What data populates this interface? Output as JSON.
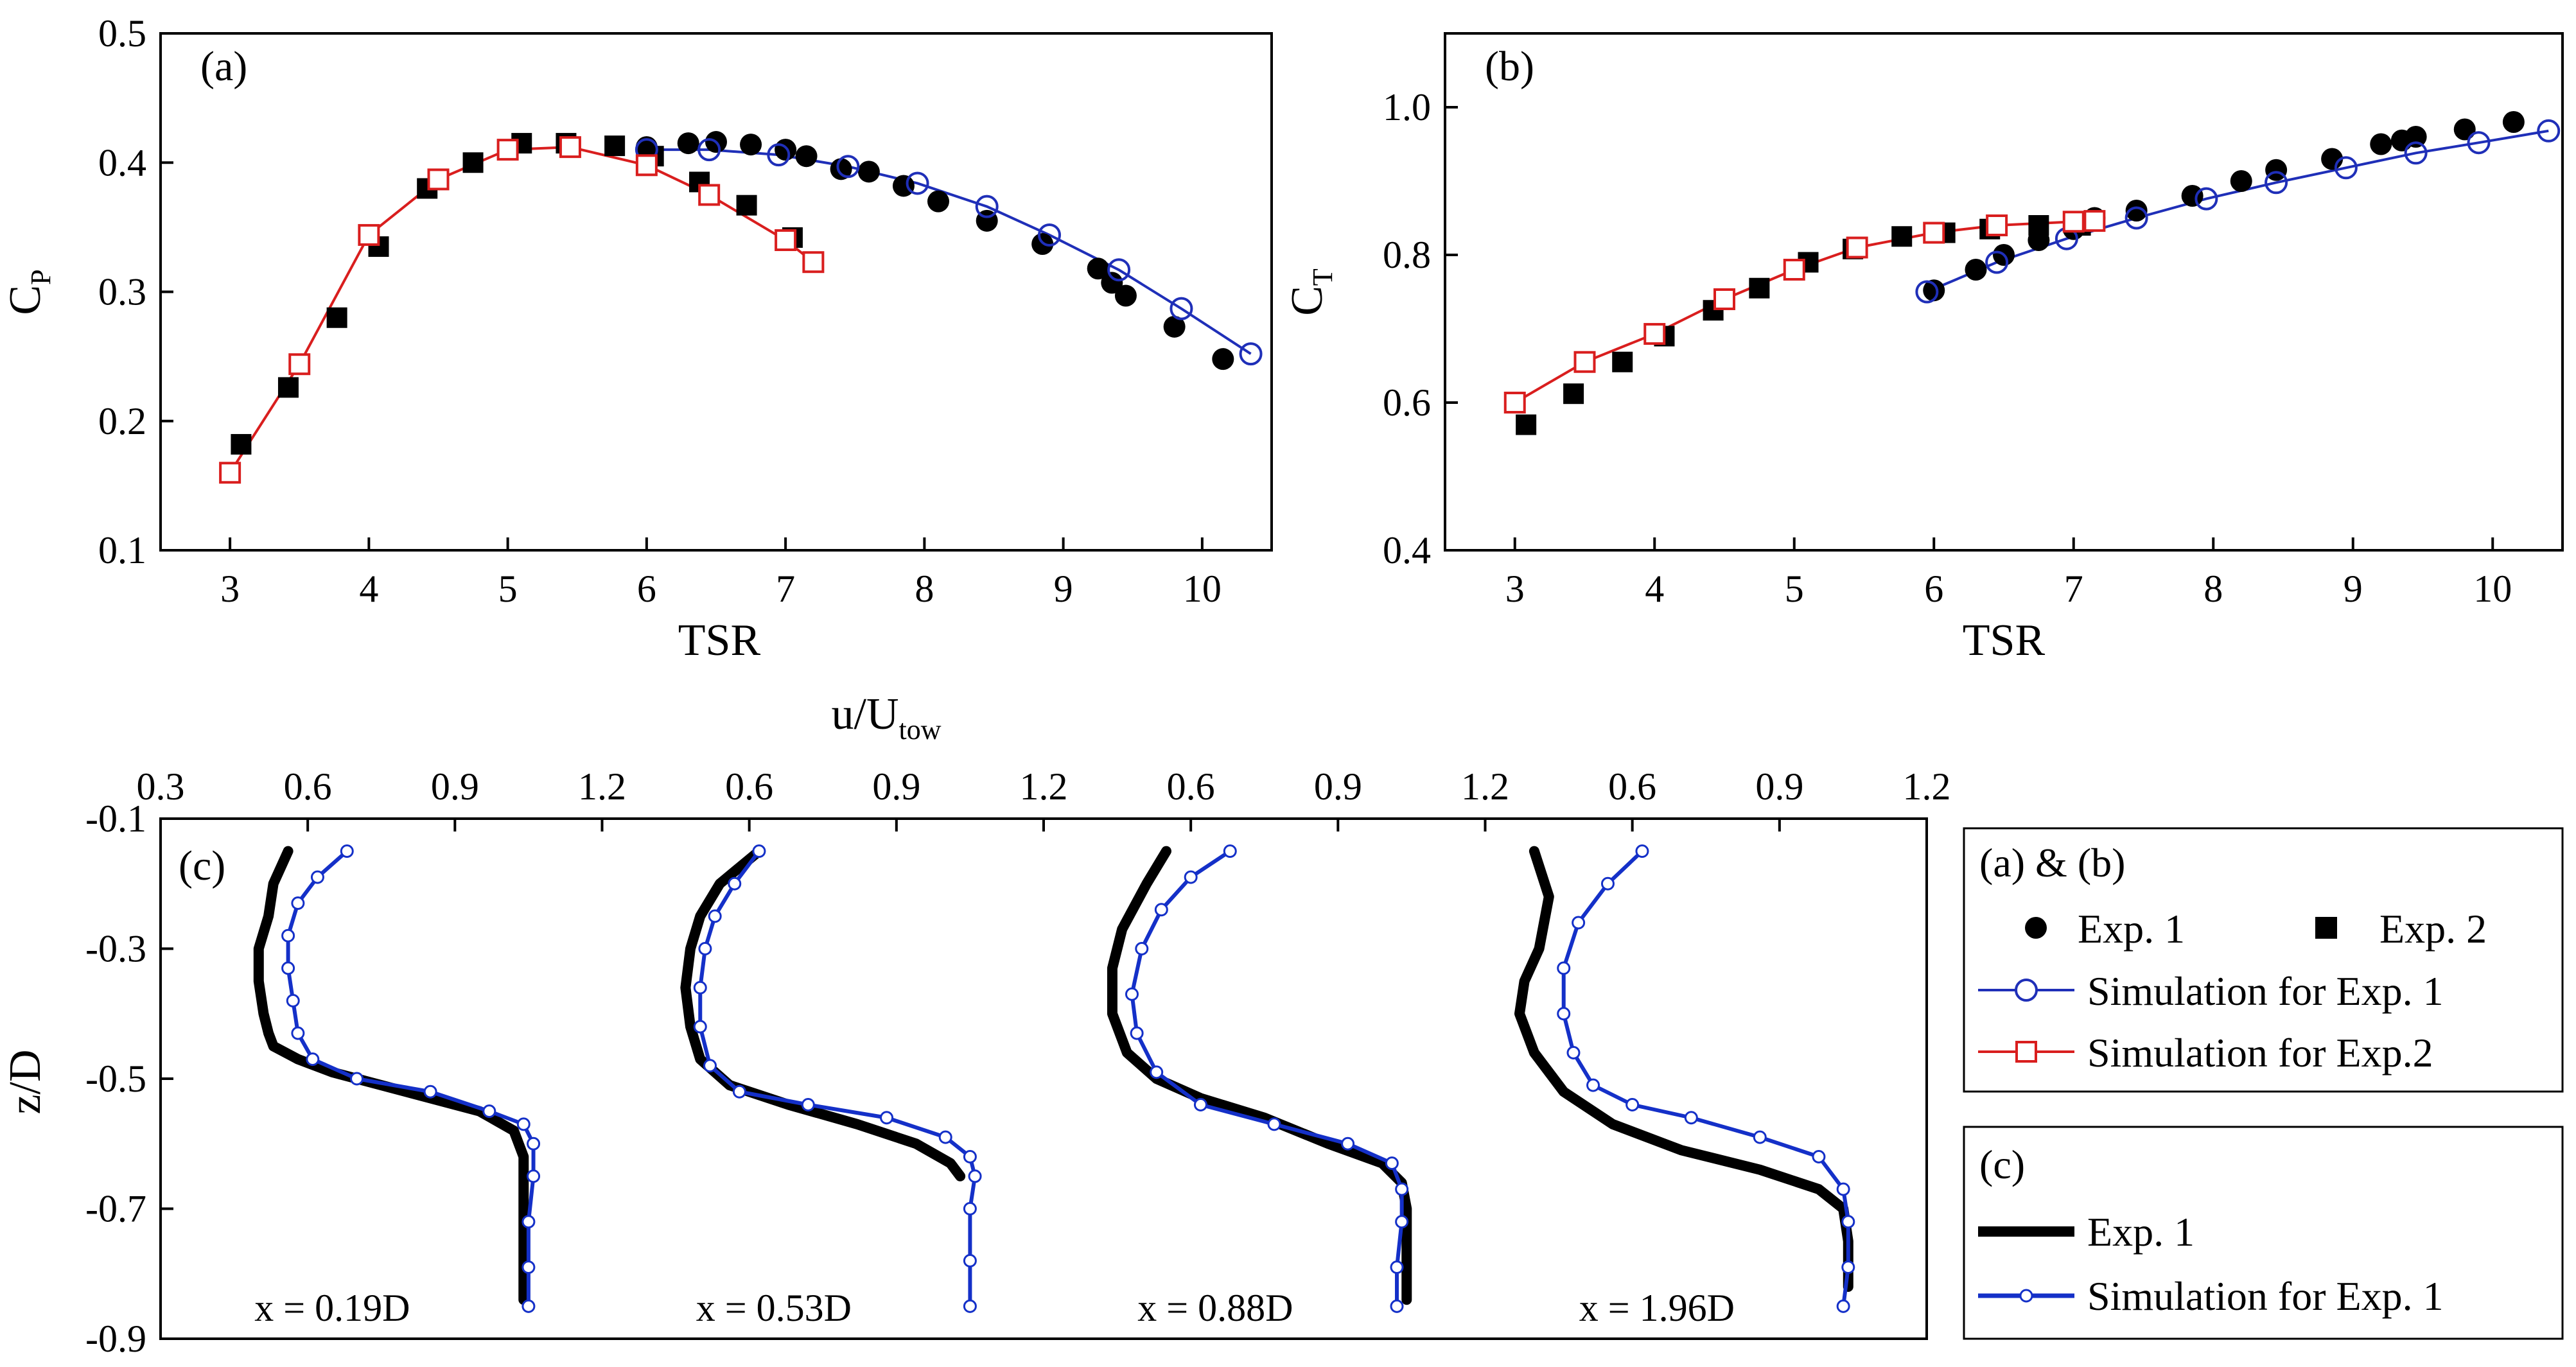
{
  "chart_data": [
    {
      "id": "a",
      "panel_label": "(a)",
      "type": "line",
      "xlabel": "TSR",
      "ylabel": "C",
      "ylabel_sub": "P",
      "xlim": [
        2.5,
        10.5
      ],
      "ylim": [
        0.1,
        0.5
      ],
      "xticks": [
        3,
        4,
        5,
        6,
        7,
        8,
        9,
        10
      ],
      "yticks": [
        0.1,
        0.2,
        0.3,
        0.4,
        0.5
      ],
      "series": [
        {
          "name": "Exp. 1",
          "kind": "filled-circle",
          "x": [
            6.0,
            6.3,
            6.5,
            6.75,
            7.0,
            7.15,
            7.4,
            7.6,
            7.85,
            8.1,
            8.45,
            8.85,
            9.25,
            9.35,
            9.45,
            9.8,
            10.15
          ],
          "y": [
            0.412,
            0.415,
            0.416,
            0.414,
            0.41,
            0.405,
            0.395,
            0.393,
            0.382,
            0.37,
            0.355,
            0.337,
            0.318,
            0.307,
            0.297,
            0.273,
            0.248
          ]
        },
        {
          "name": "Exp. 2",
          "kind": "filled-square",
          "x": [
            3.08,
            3.42,
            3.77,
            4.07,
            4.42,
            4.75,
            5.1,
            5.42,
            5.77,
            6.05,
            6.38,
            6.72,
            7.05
          ],
          "y": [
            0.182,
            0.226,
            0.28,
            0.335,
            0.38,
            0.4,
            0.415,
            0.415,
            0.413,
            0.405,
            0.385,
            0.367,
            0.342
          ]
        },
        {
          "name": "Simulation for Exp. 1",
          "kind": "blue-line-open-circle",
          "x": [
            6.0,
            6.45,
            6.95,
            7.45,
            7.95,
            8.45,
            8.9,
            9.4,
            9.85,
            10.35
          ],
          "y": [
            0.41,
            0.41,
            0.406,
            0.397,
            0.384,
            0.366,
            0.344,
            0.317,
            0.287,
            0.252
          ]
        },
        {
          "name": "Simulation for Exp.2",
          "kind": "red-line-open-square",
          "x": [
            3.0,
            3.5,
            4.0,
            4.5,
            5.0,
            5.45,
            6.0,
            6.45,
            7.0,
            7.2
          ],
          "y": [
            0.16,
            0.244,
            0.344,
            0.387,
            0.41,
            0.412,
            0.398,
            0.375,
            0.34,
            0.323
          ]
        }
      ]
    },
    {
      "id": "b",
      "panel_label": "(b)",
      "type": "line",
      "xlabel": "TSR",
      "ylabel": "C",
      "ylabel_sub": "T",
      "xlim": [
        2.5,
        10.5
      ],
      "ylim": [
        0.4,
        1.1
      ],
      "xticks": [
        3,
        4,
        5,
        6,
        7,
        8,
        9,
        10
      ],
      "yticks": [
        0.4,
        0.6,
        0.8,
        1.0
      ],
      "ytick_labels": [
        "0.4",
        "0.6",
        "0.8",
        "1.0"
      ],
      "series": [
        {
          "name": "Exp. 1",
          "kind": "filled-circle",
          "x": [
            6.0,
            6.3,
            6.5,
            6.75,
            7.0,
            7.15,
            7.45,
            7.85,
            8.2,
            8.45,
            8.85,
            9.2,
            9.35,
            9.45,
            9.8,
            10.15
          ],
          "y": [
            0.752,
            0.78,
            0.8,
            0.82,
            0.835,
            0.85,
            0.86,
            0.88,
            0.9,
            0.915,
            0.93,
            0.95,
            0.955,
            0.96,
            0.97,
            0.98
          ]
        },
        {
          "name": "Exp. 2",
          "kind": "filled-square",
          "x": [
            3.08,
            3.42,
            3.77,
            4.07,
            4.42,
            4.75,
            5.1,
            5.42,
            5.77,
            6.08,
            6.4,
            6.75,
            7.05
          ],
          "y": [
            0.57,
            0.612,
            0.655,
            0.69,
            0.725,
            0.755,
            0.79,
            0.808,
            0.825,
            0.83,
            0.835,
            0.84,
            0.84
          ]
        },
        {
          "name": "Simulation for Exp. 1",
          "kind": "blue-line-open-circle",
          "x": [
            5.95,
            6.45,
            6.95,
            7.45,
            7.95,
            8.45,
            8.95,
            9.45,
            9.9,
            10.4
          ],
          "y": [
            0.75,
            0.79,
            0.822,
            0.85,
            0.876,
            0.898,
            0.918,
            0.938,
            0.952,
            0.968
          ]
        },
        {
          "name": "Simulation for Exp.2",
          "kind": "red-line-open-square",
          "x": [
            3.0,
            3.5,
            4.0,
            4.5,
            5.0,
            5.45,
            6.0,
            6.45,
            7.0,
            7.15
          ],
          "y": [
            0.6,
            0.655,
            0.693,
            0.74,
            0.78,
            0.81,
            0.83,
            0.84,
            0.845,
            0.846
          ]
        }
      ]
    },
    {
      "id": "c",
      "panel_label": "(c)",
      "type": "line",
      "xlabel": "u/U",
      "xlabel_sub": "tow",
      "ylabel": "z/D",
      "ylim": [
        -0.9,
        -0.1
      ],
      "yticks": [
        -0.9,
        -0.7,
        -0.5,
        -0.3,
        -0.1
      ],
      "ytick_labels": [
        "-0.9",
        "-0.7",
        "-0.5",
        "-0.3",
        "-0.1"
      ],
      "xtick_labels": [
        "0.3",
        "0.6",
        "0.9",
        "1.2",
        "0.6",
        "0.9",
        "1.2",
        "0.6",
        "0.9",
        "1.2",
        "0.6",
        "0.9",
        "1.2"
      ],
      "xtick_values": [
        0.3,
        0.6,
        0.9,
        1.2,
        1.5,
        1.8,
        2.1,
        2.4,
        2.7,
        3.0,
        3.3,
        3.6,
        3.9
      ],
      "xlim": [
        0.3,
        3.9
      ],
      "profiles": [
        {
          "label": "x = 0.19D",
          "offset": 0.0,
          "exp": {
            "u": [
              0.56,
              0.53,
              0.52,
              0.5,
              0.5,
              0.51,
              0.52,
              0.53,
              0.58,
              0.65,
              0.8,
              0.95,
              1.02,
              1.04,
              1.04,
              1.04,
              1.04
            ],
            "z": [
              -0.15,
              -0.2,
              -0.25,
              -0.3,
              -0.35,
              -0.4,
              -0.43,
              -0.45,
              -0.47,
              -0.49,
              -0.52,
              -0.55,
              -0.58,
              -0.62,
              -0.7,
              -0.78,
              -0.84
            ]
          },
          "sim": {
            "u": [
              0.68,
              0.62,
              0.58,
              0.56,
              0.56,
              0.57,
              0.58,
              0.61,
              0.7,
              0.85,
              0.97,
              1.04,
              1.06,
              1.06,
              1.05,
              1.05,
              1.05
            ],
            "z": [
              -0.15,
              -0.19,
              -0.23,
              -0.28,
              -0.33,
              -0.38,
              -0.43,
              -0.47,
              -0.5,
              -0.52,
              -0.55,
              -0.57,
              -0.6,
              -0.65,
              -0.72,
              -0.79,
              -0.85
            ]
          }
        },
        {
          "label": "x = 0.53D",
          "offset": 0.9,
          "exp": {
            "u": [
              0.62,
              0.54,
              0.5,
              0.48,
              0.47,
              0.48,
              0.5,
              0.56,
              0.68,
              0.82,
              0.94,
              1.01,
              1.03
            ],
            "z": [
              -0.15,
              -0.2,
              -0.25,
              -0.3,
              -0.36,
              -0.42,
              -0.47,
              -0.51,
              -0.54,
              -0.57,
              -0.6,
              -0.63,
              -0.65
            ]
          },
          "sim": {
            "u": [
              0.62,
              0.57,
              0.53,
              0.51,
              0.5,
              0.5,
              0.52,
              0.58,
              0.72,
              0.88,
              1.0,
              1.05,
              1.06,
              1.05,
              1.05,
              1.05
            ],
            "z": [
              -0.15,
              -0.2,
              -0.25,
              -0.3,
              -0.36,
              -0.42,
              -0.48,
              -0.52,
              -0.54,
              -0.56,
              -0.59,
              -0.62,
              -0.65,
              -0.7,
              -0.78,
              -0.85
            ]
          }
        },
        {
          "label": "x = 0.88D",
          "offset": 1.8,
          "exp": {
            "u": [
              0.55,
              0.51,
              0.46,
              0.44,
              0.44,
              0.47,
              0.53,
              0.62,
              0.75,
              0.88,
              0.99,
              1.03,
              1.04,
              1.04,
              1.04
            ],
            "z": [
              -0.15,
              -0.2,
              -0.27,
              -0.33,
              -0.4,
              -0.46,
              -0.5,
              -0.53,
              -0.56,
              -0.6,
              -0.63,
              -0.66,
              -0.7,
              -0.78,
              -0.84
            ]
          },
          "sim": {
            "u": [
              0.68,
              0.6,
              0.54,
              0.5,
              0.48,
              0.49,
              0.53,
              0.62,
              0.77,
              0.92,
              1.01,
              1.03,
              1.03,
              1.02,
              1.02
            ],
            "z": [
              -0.15,
              -0.19,
              -0.24,
              -0.3,
              -0.37,
              -0.43,
              -0.49,
              -0.54,
              -0.57,
              -0.6,
              -0.63,
              -0.67,
              -0.72,
              -0.79,
              -0.85
            ]
          }
        },
        {
          "label": "x = 1.96D",
          "offset": 2.7,
          "exp": {
            "u": [
              0.4,
              0.43,
              0.41,
              0.38,
              0.37,
              0.4,
              0.46,
              0.56,
              0.7,
              0.86,
              0.98,
              1.03,
              1.04,
              1.04
            ],
            "z": [
              -0.15,
              -0.22,
              -0.3,
              -0.35,
              -0.4,
              -0.46,
              -0.52,
              -0.57,
              -0.61,
              -0.64,
              -0.67,
              -0.7,
              -0.75,
              -0.82
            ]
          },
          "sim": {
            "u": [
              0.62,
              0.55,
              0.49,
              0.46,
              0.46,
              0.48,
              0.52,
              0.6,
              0.72,
              0.86,
              0.98,
              1.03,
              1.04,
              1.04,
              1.03
            ],
            "z": [
              -0.15,
              -0.2,
              -0.26,
              -0.33,
              -0.4,
              -0.46,
              -0.51,
              -0.54,
              -0.56,
              -0.59,
              -0.62,
              -0.67,
              -0.72,
              -0.79,
              -0.85
            ]
          }
        }
      ]
    }
  ],
  "legend_ab": {
    "title": "(a) & (b)",
    "exp1": "Exp. 1",
    "exp2": "Exp. 2",
    "sim1": "Simulation for Exp. 1",
    "sim2": "Simulation for Exp.2"
  },
  "legend_c": {
    "title": "(c)",
    "exp1": "Exp. 1",
    "sim1": "Simulation for Exp. 1"
  },
  "colors": {
    "exp": "#000000",
    "sim1": "#1f2fb8",
    "sim2": "#d91e1e",
    "profile_sim": "#1430c8"
  }
}
